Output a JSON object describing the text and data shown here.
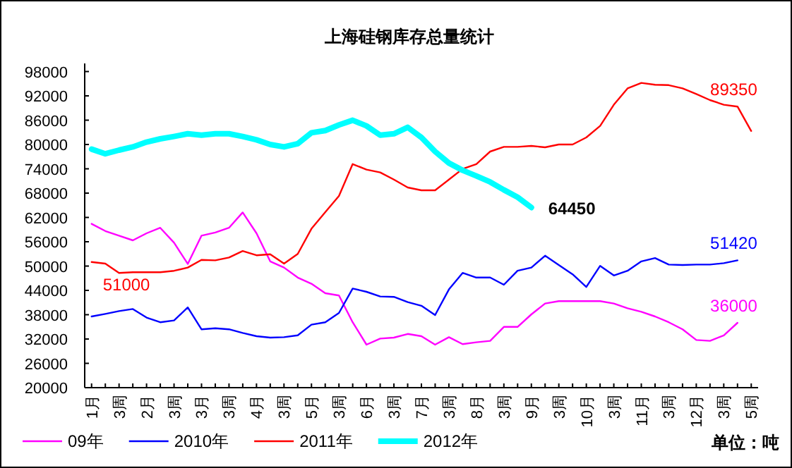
{
  "chart_data": {
    "type": "line",
    "title": "上海硅钢库存总量统计",
    "categories": [
      "1月",
      null,
      "3周",
      null,
      "2月",
      null,
      "3周",
      null,
      "3月",
      null,
      "3周",
      null,
      "4月",
      null,
      "3周",
      null,
      "5月",
      null,
      "3周",
      null,
      "6月",
      null,
      "3周",
      null,
      "7月",
      null,
      "3周",
      null,
      "8月",
      null,
      "3周",
      null,
      "9月",
      null,
      "3周",
      null,
      "10月",
      null,
      "3周",
      null,
      "11月",
      null,
      "3周",
      null,
      "12月",
      null,
      "3周",
      null,
      "5周"
    ],
    "series": [
      {
        "name": "09年",
        "color": "#ff00ff",
        "values": [
          60400,
          58650,
          57500,
          56350,
          58100,
          59450,
          55750,
          50550,
          57500,
          58300,
          59450,
          63250,
          58100,
          51150,
          49650,
          47150,
          45650,
          43300,
          42750,
          36150,
          30600,
          32100,
          32350,
          33250,
          32700,
          30600,
          32450,
          30750,
          31200,
          31550,
          35000,
          35000,
          38100,
          40750,
          41350,
          41350,
          41350,
          41350,
          40750,
          39600,
          38700,
          37550,
          36150,
          34400,
          31750,
          31550,
          32900,
          36000,
          null
        ],
        "value_labels": [
          null,
          null,
          null,
          null,
          null,
          null,
          null,
          null,
          null,
          null,
          null,
          null,
          null,
          null,
          null,
          null,
          null,
          null,
          null,
          null,
          null,
          null,
          null,
          null,
          null,
          null,
          null,
          null,
          null,
          null,
          null,
          null,
          null,
          null,
          null,
          null,
          null,
          null,
          null,
          null,
          null,
          null,
          null,
          null,
          null,
          null,
          null,
          "36000",
          null
        ]
      },
      {
        "name": "2010年",
        "color": "#0000ff",
        "values": [
          37550,
          38200,
          38900,
          39400,
          37300,
          36150,
          36600,
          39800,
          34400,
          34650,
          34400,
          33500,
          32700,
          32350,
          32450,
          32900,
          35550,
          36150,
          38450,
          44450,
          43650,
          42500,
          42400,
          41100,
          40200,
          37900,
          44250,
          48300,
          47150,
          47150,
          45400,
          48850,
          49650,
          52550,
          50250,
          47950,
          44850,
          50050,
          47700,
          48850,
          51150,
          51950,
          50350,
          50250,
          50350,
          50350,
          50700,
          51420,
          null
        ],
        "value_labels": [
          null,
          null,
          null,
          null,
          null,
          null,
          null,
          null,
          null,
          null,
          null,
          null,
          null,
          null,
          null,
          null,
          null,
          null,
          null,
          null,
          null,
          null,
          null,
          null,
          null,
          null,
          null,
          null,
          null,
          null,
          null,
          null,
          null,
          null,
          null,
          null,
          null,
          null,
          null,
          null,
          null,
          null,
          null,
          null,
          null,
          null,
          null,
          "51420",
          null
        ]
      },
      {
        "name": "2011年",
        "color": "#ff0000",
        "values": [
          51000,
          50600,
          48300,
          48500,
          48500,
          48500,
          48850,
          49650,
          51500,
          51400,
          52100,
          53700,
          52650,
          52900,
          50600,
          53000,
          59200,
          63300,
          67300,
          75150,
          73800,
          73100,
          71350,
          69400,
          68700,
          68700,
          71350,
          74000,
          75150,
          78250,
          79400,
          79400,
          79650,
          79300,
          80000,
          80000,
          81750,
          84600,
          89800,
          93850,
          95200,
          94750,
          94650,
          93850,
          92450,
          90950,
          89800,
          89350,
          83350
        ],
        "value_labels": [
          "51000",
          null,
          null,
          null,
          null,
          null,
          null,
          null,
          null,
          null,
          null,
          null,
          null,
          null,
          null,
          null,
          null,
          null,
          null,
          null,
          null,
          null,
          null,
          null,
          null,
          null,
          null,
          null,
          null,
          null,
          null,
          null,
          null,
          null,
          null,
          null,
          null,
          null,
          null,
          null,
          null,
          null,
          null,
          null,
          null,
          null,
          null,
          "89350",
          null
        ]
      },
      {
        "name": "2012年",
        "color": "#00ffff",
        "values": [
          78850,
          77700,
          78600,
          79400,
          80600,
          81400,
          82000,
          82650,
          82300,
          82650,
          82650,
          82000,
          81150,
          80000,
          79400,
          80200,
          82900,
          83450,
          84850,
          86000,
          84600,
          82300,
          82650,
          84250,
          81750,
          78250,
          75400,
          73650,
          72250,
          70750,
          68800,
          67000,
          64450,
          null,
          null,
          null,
          null,
          null,
          null,
          null,
          null,
          null,
          null,
          null,
          null,
          null,
          null,
          null,
          null
        ],
        "value_labels": [
          null,
          null,
          null,
          null,
          null,
          null,
          null,
          null,
          null,
          null,
          null,
          null,
          null,
          null,
          null,
          null,
          null,
          null,
          null,
          null,
          null,
          null,
          null,
          null,
          null,
          null,
          null,
          null,
          null,
          null,
          null,
          null,
          "64450",
          null,
          null,
          null,
          null,
          null,
          null,
          null,
          null,
          null,
          null,
          null,
          null,
          null,
          null,
          null,
          null
        ]
      }
    ],
    "ylim": [
      20000,
      100000
    ],
    "yticks": [
      20000,
      26000,
      32000,
      38000,
      44000,
      50000,
      56000,
      62000,
      68000,
      74000,
      80000,
      86000,
      92000,
      98000
    ],
    "grid": false,
    "legend": "bottom",
    "marker": "none",
    "line_style": "solid",
    "annotations": [
      "单位：吨"
    ]
  }
}
